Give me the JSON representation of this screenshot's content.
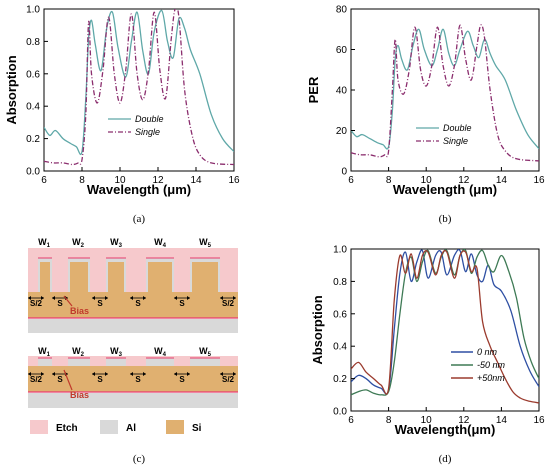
{
  "chart_data": [
    {
      "id": "a",
      "type": "line",
      "caption": "(a)",
      "xlabel": "Wavelength (μm)",
      "ylabel": "Absorption",
      "xlim": [
        6,
        16
      ],
      "ylim": [
        0,
        1.0
      ],
      "xticks": [
        6,
        8,
        10,
        12,
        14,
        16
      ],
      "yticks": [
        0.0,
        0.2,
        0.4,
        0.6,
        0.8,
        1.0
      ],
      "legend_position": "right",
      "series": [
        {
          "name": "Double",
          "color": "#5fa8a8",
          "dash": "solid",
          "x": [
            6,
            6.3,
            6.6,
            7.0,
            7.4,
            7.7,
            8.0,
            8.2,
            8.35,
            8.5,
            8.7,
            9.0,
            9.3,
            9.6,
            9.9,
            10.3,
            10.6,
            10.9,
            11.2,
            11.5,
            11.8,
            12.2,
            12.5,
            12.8,
            13.1,
            13.4,
            13.7,
            14.2,
            14.8,
            15.4,
            16
          ],
          "y": [
            0.27,
            0.22,
            0.25,
            0.2,
            0.17,
            0.15,
            0.12,
            0.45,
            0.82,
            0.93,
            0.78,
            0.62,
            0.88,
            0.98,
            0.76,
            0.58,
            0.8,
            0.98,
            0.74,
            0.6,
            0.86,
            0.99,
            0.8,
            0.7,
            0.94,
            0.88,
            0.75,
            0.6,
            0.35,
            0.2,
            0.12
          ]
        },
        {
          "name": "Single",
          "color": "#8b2e6e",
          "dash": "dashdot",
          "x": [
            6,
            6.5,
            7.0,
            7.5,
            7.8,
            8.0,
            8.2,
            8.35,
            8.5,
            8.8,
            9.1,
            9.4,
            9.7,
            10.0,
            10.3,
            10.6,
            10.9,
            11.2,
            11.5,
            11.8,
            12.1,
            12.4,
            12.7,
            12.9,
            13.1,
            13.4,
            13.8,
            14.2,
            14.8,
            16
          ],
          "y": [
            0.06,
            0.05,
            0.05,
            0.04,
            0.05,
            0.07,
            0.35,
            0.92,
            0.6,
            0.42,
            0.62,
            0.95,
            0.6,
            0.42,
            0.62,
            0.97,
            0.6,
            0.44,
            0.62,
            0.98,
            0.62,
            0.45,
            0.82,
            1.0,
            0.95,
            0.5,
            0.22,
            0.1,
            0.05,
            0.04
          ]
        }
      ]
    },
    {
      "id": "b",
      "type": "line",
      "caption": "(b)",
      "xlabel": "Wavelength (μm)",
      "ylabel": "PER",
      "xlim": [
        6,
        16
      ],
      "ylim": [
        0,
        80
      ],
      "xticks": [
        6,
        8,
        10,
        12,
        14,
        16
      ],
      "yticks": [
        0,
        20,
        40,
        60,
        80
      ],
      "legend_position": "right",
      "series": [
        {
          "name": "Double",
          "color": "#5fa8a8",
          "dash": "solid",
          "x": [
            6,
            6.3,
            6.6,
            7.0,
            7.4,
            7.7,
            8.0,
            8.2,
            8.35,
            8.5,
            8.7,
            9.0,
            9.3,
            9.6,
            9.9,
            10.3,
            10.6,
            10.9,
            11.2,
            11.5,
            11.8,
            12.2,
            12.5,
            12.8,
            13.1,
            13.4,
            13.7,
            14.2,
            14.8,
            15.4,
            16
          ],
          "y": [
            20,
            17,
            18,
            16,
            14,
            13,
            12,
            30,
            55,
            62,
            55,
            50,
            62,
            70,
            60,
            52,
            60,
            70,
            58,
            52,
            60,
            69,
            62,
            56,
            65,
            58,
            52,
            45,
            30,
            18,
            11
          ]
        },
        {
          "name": "Single",
          "color": "#8b2e6e",
          "dash": "dashdot",
          "x": [
            6,
            6.5,
            7.0,
            7.5,
            7.8,
            8.0,
            8.2,
            8.35,
            8.5,
            8.8,
            9.1,
            9.4,
            9.7,
            10.0,
            10.3,
            10.6,
            10.9,
            11.2,
            11.5,
            11.8,
            12.1,
            12.4,
            12.7,
            12.9,
            13.1,
            13.4,
            13.8,
            14.2,
            14.8,
            16
          ],
          "y": [
            9,
            8,
            8,
            7,
            8,
            10,
            40,
            65,
            45,
            38,
            50,
            71,
            50,
            42,
            52,
            71,
            52,
            42,
            52,
            72,
            55,
            45,
            62,
            72,
            66,
            40,
            18,
            10,
            6,
            5
          ]
        }
      ]
    },
    {
      "id": "d",
      "type": "line",
      "caption": "(d)",
      "xlabel": "Wavelength(μm)",
      "ylabel": "Absorption",
      "xlim": [
        6,
        16
      ],
      "ylim": [
        0,
        1.0
      ],
      "xticks": [
        6,
        8,
        10,
        12,
        14,
        16
      ],
      "yticks": [
        0.0,
        0.2,
        0.4,
        0.6,
        0.8,
        1.0
      ],
      "legend_position": "bottom-right",
      "series": [
        {
          "name": "0 nm",
          "color": "#2e4fa3",
          "dash": "solid",
          "x": [
            6,
            6.4,
            6.8,
            7.2,
            7.6,
            8.0,
            8.3,
            8.6,
            8.9,
            9.2,
            9.5,
            9.8,
            10.1,
            10.5,
            10.8,
            11.1,
            11.5,
            11.8,
            12.1,
            12.4,
            12.7,
            13.0,
            13.3,
            13.6,
            14.0,
            14.5,
            15.0,
            15.5,
            16
          ],
          "y": [
            0.18,
            0.22,
            0.2,
            0.16,
            0.14,
            0.13,
            0.5,
            0.85,
            0.98,
            0.8,
            0.92,
            0.99,
            0.82,
            0.96,
            0.98,
            0.84,
            0.96,
            0.99,
            0.86,
            0.97,
            0.84,
            0.8,
            0.9,
            0.78,
            0.74,
            0.62,
            0.4,
            0.25,
            0.15
          ]
        },
        {
          "name": "-50 nm",
          "color": "#3e7a55",
          "dash": "solid",
          "x": [
            6,
            6.4,
            6.8,
            7.2,
            7.6,
            8.0,
            8.3,
            8.6,
            8.9,
            9.2,
            9.5,
            9.8,
            10.1,
            10.5,
            10.8,
            11.1,
            11.5,
            11.8,
            12.1,
            12.4,
            12.7,
            13.0,
            13.3,
            13.6,
            14.0,
            14.4,
            14.8,
            15.2,
            15.6,
            16
          ],
          "y": [
            0.1,
            0.12,
            0.13,
            0.11,
            0.1,
            0.12,
            0.3,
            0.6,
            0.85,
            0.95,
            0.8,
            0.92,
            0.99,
            0.85,
            0.95,
            0.99,
            0.84,
            0.96,
            0.99,
            0.85,
            0.95,
            0.99,
            0.9,
            0.86,
            0.96,
            0.86,
            0.7,
            0.45,
            0.3,
            0.2
          ]
        },
        {
          "name": "+50nm",
          "color": "#9b3b2e",
          "dash": "solid",
          "x": [
            6,
            6.4,
            6.8,
            7.2,
            7.6,
            8.0,
            8.3,
            8.6,
            8.9,
            9.2,
            9.5,
            9.8,
            10.1,
            10.5,
            10.8,
            11.1,
            11.5,
            11.8,
            12.1,
            12.4,
            12.7,
            13.0,
            13.4,
            13.8,
            14.2,
            14.6,
            15.0,
            15.5,
            16
          ],
          "y": [
            0.26,
            0.3,
            0.24,
            0.2,
            0.16,
            0.14,
            0.68,
            0.96,
            0.85,
            0.97,
            0.82,
            0.96,
            0.98,
            0.84,
            0.96,
            0.98,
            0.82,
            0.96,
            0.98,
            0.86,
            0.88,
            0.55,
            0.4,
            0.3,
            0.2,
            0.12,
            0.08,
            0.06,
            0.05
          ]
        }
      ]
    }
  ],
  "diagram_c": {
    "caption": "(c)",
    "widths_top": [
      "W",
      "W",
      "W",
      "W",
      "W"
    ],
    "width_subs": [
      "1",
      "2",
      "3",
      "4",
      "5"
    ],
    "spacing_labels": [
      "S/2",
      "S",
      "S",
      "S",
      "S",
      "S/2"
    ],
    "bias_label": "Bias",
    "legend": {
      "etch": "Etch",
      "al": "Al",
      "si": "Si"
    },
    "colors": {
      "etch": "#f6c9cc",
      "al": "#d9d9d9",
      "si": "#e0b070",
      "al_line": "#e83a6c",
      "arrow": "#c0392b"
    }
  }
}
